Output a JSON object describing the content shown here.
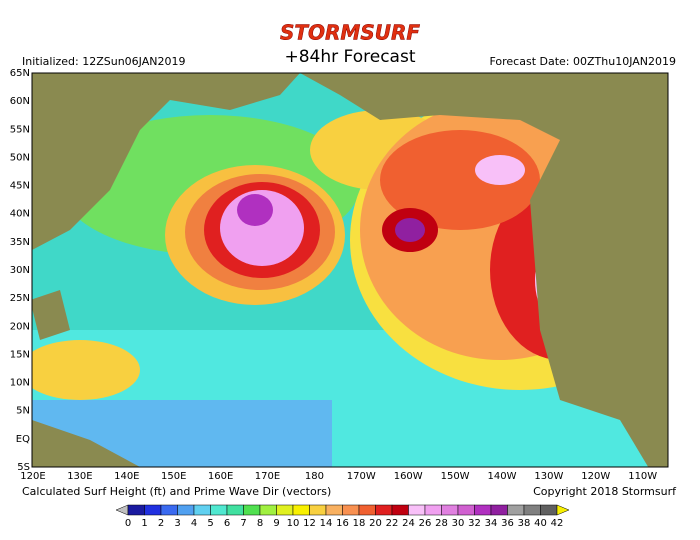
{
  "header": {
    "logo": "STORMSURF",
    "title": "+84hr Forecast",
    "initialized": "Initialized: 12ZSun06JAN2019",
    "forecast_date": "Forecast Date: 00ZThu10JAN2019"
  },
  "map": {
    "lat_labels": [
      "65N",
      "60N",
      "55N",
      "50N",
      "45N",
      "40N",
      "35N",
      "30N",
      "25N",
      "20N",
      "15N",
      "10N",
      "5N",
      "EQ",
      "5S"
    ],
    "lon_labels": [
      "120E",
      "130E",
      "140E",
      "150E",
      "160E",
      "170E",
      "180",
      "170W",
      "160W",
      "150W",
      "140W",
      "130W",
      "120W",
      "110W"
    ]
  },
  "footer": {
    "caption": "Calculated Surf Height (ft) and Prime Wave Dir (vectors)",
    "copyright": "Copyright 2018 Stormsurf"
  },
  "legend": {
    "labels": [
      0,
      1,
      2,
      3,
      4,
      5,
      6,
      7,
      8,
      9,
      10,
      12,
      14,
      16,
      18,
      20,
      22,
      24,
      26,
      28,
      30,
      32,
      34,
      36,
      38,
      40,
      42
    ],
    "colors": [
      "#1a1aa0",
      "#2030e0",
      "#3a6af0",
      "#50a0f0",
      "#60d0f0",
      "#50e8d0",
      "#40e0a0",
      "#50e050",
      "#a0f040",
      "#e0f020",
      "#f8f000",
      "#f8d040",
      "#f8b060",
      "#f89050",
      "#f06030",
      "#e02020",
      "#c00010",
      "#f8c0f8",
      "#f0a0f0",
      "#e080e0",
      "#d060d0",
      "#b030c0",
      "#9020a0",
      "#a0a0a0",
      "#808080",
      "#606060",
      "#404040",
      "#f8f000"
    ]
  }
}
